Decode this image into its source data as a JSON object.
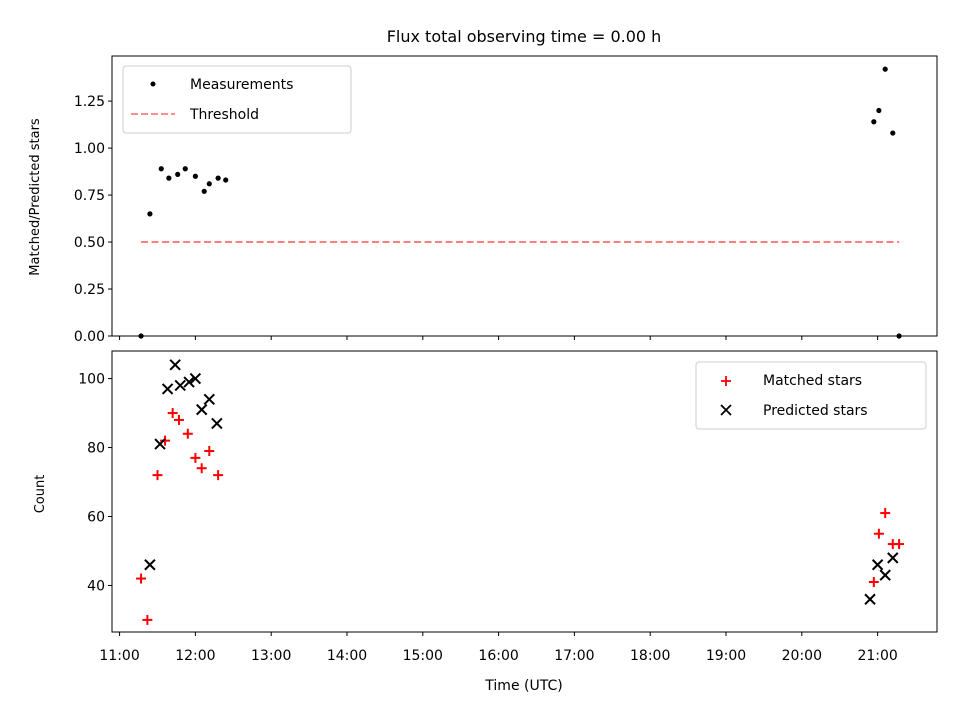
{
  "chart_data": [
    {
      "type": "scatter",
      "title": "Flux total observing time = 0.00 h",
      "ylabel": "Matched/Predicted stars",
      "xlabel": "",
      "xlim": [
        "10:54",
        "21:47"
      ],
      "ylim": [
        0,
        1.49
      ],
      "yticks": [
        0.0,
        0.25,
        0.5,
        0.75,
        1.0,
        1.25
      ],
      "yticklabels": [
        "0.00",
        "0.25",
        "0.50",
        "0.75",
        "1.00",
        "1.25"
      ],
      "legend_position": "top-left",
      "series": [
        {
          "name": "Measurements",
          "marker": "dot",
          "color": "#000000",
          "points": [
            [
              "11:17",
              0.0
            ],
            [
              "11:24",
              0.65
            ],
            [
              "11:33",
              0.89
            ],
            [
              "11:39",
              0.84
            ],
            [
              "11:46",
              0.86
            ],
            [
              "11:52",
              0.89
            ],
            [
              "12:00",
              0.85
            ],
            [
              "12:07",
              0.77
            ],
            [
              "12:11",
              0.81
            ],
            [
              "12:18",
              0.84
            ],
            [
              "12:24",
              0.83
            ],
            [
              "20:57",
              1.14
            ],
            [
              "21:01",
              1.2
            ],
            [
              "21:06",
              1.42
            ],
            [
              "21:12",
              1.08
            ],
            [
              "21:17",
              0.0
            ]
          ]
        },
        {
          "name": "Threshold",
          "line": "dashed",
          "color": "#ff7f7f",
          "x": [
            "11:17",
            "21:17"
          ],
          "y": [
            0.5,
            0.5
          ]
        }
      ]
    },
    {
      "type": "scatter",
      "title": "",
      "ylabel": "Count",
      "xlabel": "Time (UTC)",
      "xlim": [
        "10:54",
        "21:47"
      ],
      "ylim": [
        26.5,
        108
      ],
      "yticks": [
        40,
        60,
        80,
        100
      ],
      "yticklabels": [
        "40",
        "60",
        "80",
        "100"
      ],
      "xticks": [
        "11:00",
        "12:00",
        "13:00",
        "14:00",
        "15:00",
        "16:00",
        "17:00",
        "18:00",
        "19:00",
        "20:00",
        "21:00"
      ],
      "legend_position": "top-right",
      "series": [
        {
          "name": "Matched stars",
          "marker": "plus",
          "color": "#ff0000",
          "points": [
            [
              "11:17",
              42
            ],
            [
              "11:22",
              30
            ],
            [
              "11:30",
              72
            ],
            [
              "11:36",
              82
            ],
            [
              "11:42",
              90
            ],
            [
              "11:47",
              88
            ],
            [
              "11:54",
              84
            ],
            [
              "12:00",
              77
            ],
            [
              "12:05",
              74
            ],
            [
              "12:11",
              79
            ],
            [
              "12:18",
              72
            ],
            [
              "20:57",
              41
            ],
            [
              "21:01",
              55
            ],
            [
              "21:06",
              61
            ],
            [
              "21:12",
              52
            ],
            [
              "21:17",
              52
            ]
          ]
        },
        {
          "name": "Predicted stars",
          "marker": "x",
          "color": "#000000",
          "points": [
            [
              "11:24",
              46
            ],
            [
              "11:32",
              81
            ],
            [
              "11:38",
              97
            ],
            [
              "11:44",
              104
            ],
            [
              "11:48",
              98
            ],
            [
              "11:55",
              99
            ],
            [
              "12:00",
              100
            ],
            [
              "12:05",
              91
            ],
            [
              "12:11",
              94
            ],
            [
              "12:17",
              87
            ],
            [
              "20:54",
              36
            ],
            [
              "21:00",
              46
            ],
            [
              "21:06",
              43
            ],
            [
              "21:12",
              48
            ]
          ]
        }
      ]
    }
  ]
}
